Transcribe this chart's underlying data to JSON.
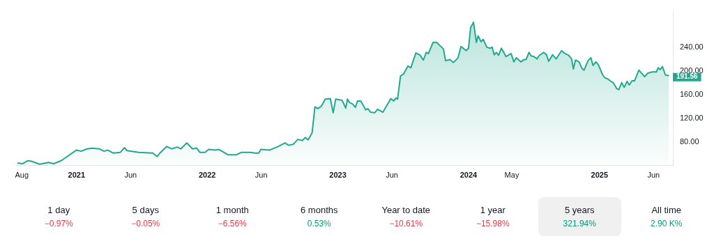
{
  "chart_data": [
    {
      "type": "area",
      "x": [
        "2020-07-20",
        "2020-08-04",
        "2020-08-18",
        "2020-08-28",
        "2020-09-20",
        "2020-10-15",
        "2020-10-29",
        "2020-11-19",
        "2021-01-01",
        "2021-01-14",
        "2021-01-30",
        "2021-02-14",
        "2021-03-06",
        "2021-03-19",
        "2021-03-29",
        "2021-04-13",
        "2021-05-03",
        "2021-05-15",
        "2021-05-22",
        "2021-06-24",
        "2021-08-02",
        "2021-08-14",
        "2021-08-22",
        "2021-09-10",
        "2021-09-24",
        "2021-10-09",
        "2021-10-19",
        "2021-11-05",
        "2021-11-21",
        "2021-12-03",
        "2021-12-12",
        "2021-12-26",
        "2022-01-05",
        "2022-01-24",
        "2022-02-03",
        "2022-02-28",
        "2022-03-24",
        "2022-04-06",
        "2022-05-01",
        "2022-05-15",
        "2022-05-25",
        "2022-05-31",
        "2022-06-25",
        "2022-07-18",
        "2022-08-07",
        "2022-08-16",
        "2022-08-30",
        "2022-09-11",
        "2022-09-24",
        "2022-10-02",
        "2022-10-10",
        "2022-10-21",
        "2022-10-29",
        "2022-11-06",
        "2022-11-16",
        "2022-11-27",
        "2022-12-11",
        "2022-12-19",
        "2022-12-26",
        "2023-01-13",
        "2023-01-23",
        "2023-01-28",
        "2023-02-03",
        "2023-02-11",
        "2023-02-19",
        "2023-02-25",
        "2023-03-06",
        "2023-03-20",
        "2023-03-26",
        "2023-04-02",
        "2023-04-14",
        "2023-04-22",
        "2023-05-07",
        "2023-05-29",
        "2023-06-06",
        "2023-06-13",
        "2023-06-17",
        "2023-06-25",
        "2023-07-03",
        "2023-07-16",
        "2023-07-24",
        "2023-08-07",
        "2023-08-18",
        "2023-08-28",
        "2023-09-05",
        "2023-09-11",
        "2023-09-24",
        "2023-10-04",
        "2023-10-14",
        "2023-10-23",
        "2023-10-29",
        "2023-11-10",
        "2023-11-20",
        "2023-12-03",
        "2023-12-11",
        "2023-12-26",
        "2024-01-01",
        "2024-01-07",
        "2024-01-15",
        "2024-01-23",
        "2024-01-28",
        "2024-02-05",
        "2024-02-11",
        "2024-02-21",
        "2024-03-01",
        "2024-03-07",
        "2024-03-13",
        "2024-03-19",
        "2024-03-25",
        "2024-04-02",
        "2024-04-15",
        "2024-04-29",
        "2024-05-07",
        "2024-05-14",
        "2024-05-26",
        "2024-06-05",
        "2024-06-10",
        "2024-06-18",
        "2024-06-24",
        "2024-07-02",
        "2024-07-10",
        "2024-07-17",
        "2024-07-29",
        "2024-08-06",
        "2024-08-12",
        "2024-08-23",
        "2024-09-02",
        "2024-09-17",
        "2024-09-27",
        "2024-10-07",
        "2024-10-15",
        "2024-10-20",
        "2024-10-26",
        "2024-11-05",
        "2024-11-13",
        "2024-11-19",
        "2024-11-30",
        "2024-12-08",
        "2024-12-14",
        "2024-12-22",
        "2024-12-29",
        "2025-01-10",
        "2025-01-16",
        "2025-01-22",
        "2025-01-31",
        "2025-02-08",
        "2025-02-18",
        "2025-02-24",
        "2025-03-04",
        "2025-03-11",
        "2025-03-19",
        "2025-03-25",
        "2025-04-02",
        "2025-04-09",
        "2025-04-21",
        "2025-05-07",
        "2025-05-16",
        "2025-05-28",
        "2025-06-09",
        "2025-06-14",
        "2025-06-20",
        "2025-06-26",
        "2025-07-04",
        "2025-07-14"
      ],
      "values": [
        44,
        43,
        48,
        47,
        42,
        45,
        43,
        48,
        66,
        64,
        68,
        69,
        68,
        64,
        66,
        61,
        62,
        70,
        65,
        62,
        61,
        55,
        61,
        72,
        68,
        71,
        68,
        78,
        68,
        69,
        62,
        62,
        67,
        66,
        67,
        58,
        58,
        62,
        62,
        61,
        61,
        67,
        66,
        72,
        78,
        74,
        76,
        84,
        82,
        87,
        83,
        95,
        139,
        136,
        140,
        152,
        153,
        129,
        152,
        150,
        137,
        152,
        146,
        144,
        138,
        149,
        149,
        134,
        136,
        130,
        129,
        135,
        130,
        153,
        149,
        154,
        152,
        191,
        194,
        208,
        205,
        230,
        227,
        218,
        231,
        229,
        248,
        248,
        242,
        237,
        217,
        219,
        214,
        222,
        241,
        234,
        238,
        273,
        282,
        248,
        259,
        249,
        253,
        240,
        238,
        240,
        227,
        231,
        226,
        238,
        224,
        229,
        215,
        222,
        215,
        219,
        219,
        231,
        225,
        224,
        220,
        226,
        231,
        227,
        216,
        227,
        220,
        234,
        229,
        226,
        220,
        203,
        218,
        215,
        204,
        201,
        217,
        222,
        209,
        215,
        210,
        193,
        188,
        187,
        183,
        180,
        170,
        168,
        180,
        172,
        182,
        176,
        183,
        183,
        201,
        190,
        196,
        198,
        198,
        205,
        202,
        207,
        193,
        191.56
      ],
      "color": "#22a88f",
      "xlim": [
        "2020-07-14",
        "2025-07-25"
      ],
      "xticks": [
        {
          "value": "2020-08-01",
          "label": "Aug"
        },
        {
          "value": "2021-01-01",
          "label": "2021"
        },
        {
          "value": "2021-06-01",
          "label": "Jun"
        },
        {
          "value": "2022-01-01",
          "label": "2022"
        },
        {
          "value": "2022-06-01",
          "label": "Jun"
        },
        {
          "value": "2023-01-01",
          "label": "2023"
        },
        {
          "value": "2023-06-01",
          "label": "Jun"
        },
        {
          "value": "2024-01-01",
          "label": "2024"
        },
        {
          "value": "2024-05-01",
          "label": "May"
        },
        {
          "value": "2025-01-01",
          "label": "2025"
        },
        {
          "value": "2025-06-01",
          "label": "Jun"
        }
      ],
      "ylim": [
        40,
        300
      ],
      "yticks": [
        {
          "value": 80,
          "label": "80.00"
        },
        {
          "value": 120,
          "label": "120.00"
        },
        {
          "value": 160,
          "label": "160.00"
        },
        {
          "value": 200,
          "label": "200.00"
        },
        {
          "value": 240,
          "label": "240.00"
        }
      ],
      "annotations": [
        {
          "text": "191.56",
          "x": "2025-07-14",
          "y": 191.56
        }
      ],
      "grid": false,
      "legend": false,
      "marker": "none",
      "line_style": "solid"
    },
    {
      "type": "other",
      "categories": [
        "1 day",
        "5 days",
        "1 month",
        "6 months",
        "Year to date",
        "1 year",
        "5 years",
        "All time"
      ],
      "value_labels": [
        "−0.97%",
        "−0.05%",
        "−6.56%",
        "0.53%",
        "−10.61%",
        "−15.98%",
        "321.94%",
        "2.90 K%"
      ],
      "colors": [
        "#f23645",
        "#f23645",
        "#f23645",
        "#089981",
        "#f23645",
        "#f23645",
        "#089981",
        "#089981"
      ]
    }
  ]
}
